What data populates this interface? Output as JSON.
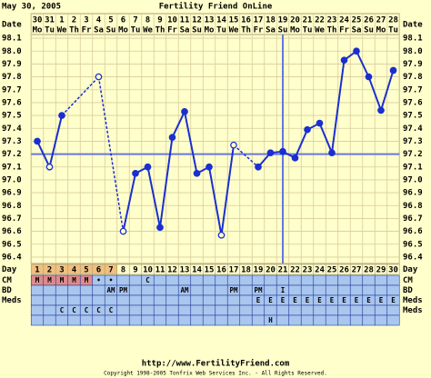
{
  "chart_data": {
    "type": "line",
    "date": "May 30, 2005",
    "title": "Fertility Friend OnLine",
    "axis_label": "Date",
    "categories": [
      "30",
      "31",
      "1",
      "2",
      "3",
      "4",
      "5",
      "6",
      "7",
      "8",
      "9",
      "10",
      "11",
      "12",
      "13",
      "14",
      "15",
      "16",
      "17",
      "18",
      "19",
      "20",
      "21",
      "22",
      "23",
      "24",
      "25",
      "26",
      "27",
      "28"
    ],
    "weekdays": [
      "Mo",
      "Tu",
      "We",
      "Th",
      "Fr",
      "Sa",
      "Su",
      "Mo",
      "Tu",
      "We",
      "Th",
      "Fr",
      "Sa",
      "Su",
      "Mo",
      "Tu",
      "We",
      "Th",
      "Fr",
      "Sa",
      "Su",
      "Mo",
      "Tu",
      "We",
      "Th",
      "Fr",
      "Sa",
      "Su",
      "Mo",
      "Tu"
    ],
    "series": [
      {
        "name": "Temperature",
        "color": "#1a2fd0",
        "values": [
          97.3,
          97.1,
          97.5,
          null,
          null,
          97.8,
          null,
          96.6,
          97.05,
          97.1,
          96.63,
          97.33,
          97.53,
          97.05,
          97.1,
          96.57,
          97.27,
          null,
          97.1,
          97.21,
          97.22,
          97.17,
          97.39,
          97.44,
          97.21,
          97.93,
          98.0,
          97.8,
          97.54,
          97.85
        ],
        "open_points": [
          1,
          5,
          7,
          15,
          16
        ]
      }
    ],
    "ylim": [
      96.35,
      98.15
    ],
    "yticks": [
      98.1,
      {
        "value": 98.0,
        "label": "98.0"
      },
      97.9,
      97.8,
      97.7,
      97.6,
      97.5,
      97.4,
      97.3,
      97.2,
      97.1,
      {
        "value": 97.0,
        "label": "97.0"
      },
      96.9,
      96.8,
      96.7,
      96.6,
      96.5,
      96.4
    ],
    "grid": true,
    "coverline": 97.2,
    "ovulation_day": 21,
    "day_label": "Day",
    "days": [
      1,
      2,
      3,
      4,
      5,
      6,
      7,
      8,
      9,
      10,
      11,
      12,
      13,
      14,
      15,
      16,
      17,
      18,
      19,
      20,
      21,
      22,
      23,
      24,
      25,
      26,
      27,
      28,
      29,
      30
    ],
    "period_length": 7,
    "rows": [
      {
        "left_label": "CM",
        "right_label": "CM",
        "cells": [
          "M",
          "M",
          "M",
          "M",
          "M",
          "•",
          "•",
          null,
          null,
          "C",
          null,
          null,
          null,
          null,
          null,
          null,
          null,
          null,
          null,
          null,
          null,
          null,
          null,
          null,
          null,
          null,
          null,
          null,
          null,
          null
        ]
      },
      {
        "left_label": "BD",
        "right_label": "BD",
        "cells": [
          null,
          null,
          null,
          null,
          null,
          null,
          "AM",
          "PM",
          null,
          null,
          null,
          null,
          "AM",
          null,
          null,
          null,
          "PM",
          null,
          "PM",
          null,
          "I",
          null,
          null,
          null,
          null,
          null,
          null,
          null,
          null,
          null
        ]
      },
      {
        "left_label": "Meds",
        "right_label": "Meds",
        "cells": [
          null,
          null,
          null,
          null,
          null,
          null,
          null,
          null,
          null,
          null,
          null,
          null,
          null,
          null,
          null,
          null,
          null,
          null,
          "E",
          "E",
          "E",
          "E",
          "E",
          "E",
          "E",
          "E",
          "E",
          "E",
          "E",
          "E"
        ]
      },
      {
        "right_label": "Meds",
        "cells": [
          null,
          null,
          "C",
          "C",
          "C",
          "C",
          "C",
          null,
          null,
          null,
          null,
          null,
          null,
          null,
          null,
          null,
          null,
          null,
          null,
          null,
          null,
          null,
          null,
          null,
          null,
          null,
          null,
          null,
          null,
          null
        ]
      },
      {
        "cells": [
          null,
          null,
          null,
          null,
          null,
          null,
          null,
          null,
          null,
          null,
          null,
          null,
          null,
          null,
          null,
          null,
          null,
          null,
          null,
          "H",
          null,
          null,
          null,
          null,
          null,
          null,
          null,
          null,
          null,
          null
        ]
      }
    ],
    "url": "http://www.FertilityFriend.com",
    "copyright": "Copyright 1998-2005 Tonfrix Web Services Inc. - All Rights Reserved."
  }
}
